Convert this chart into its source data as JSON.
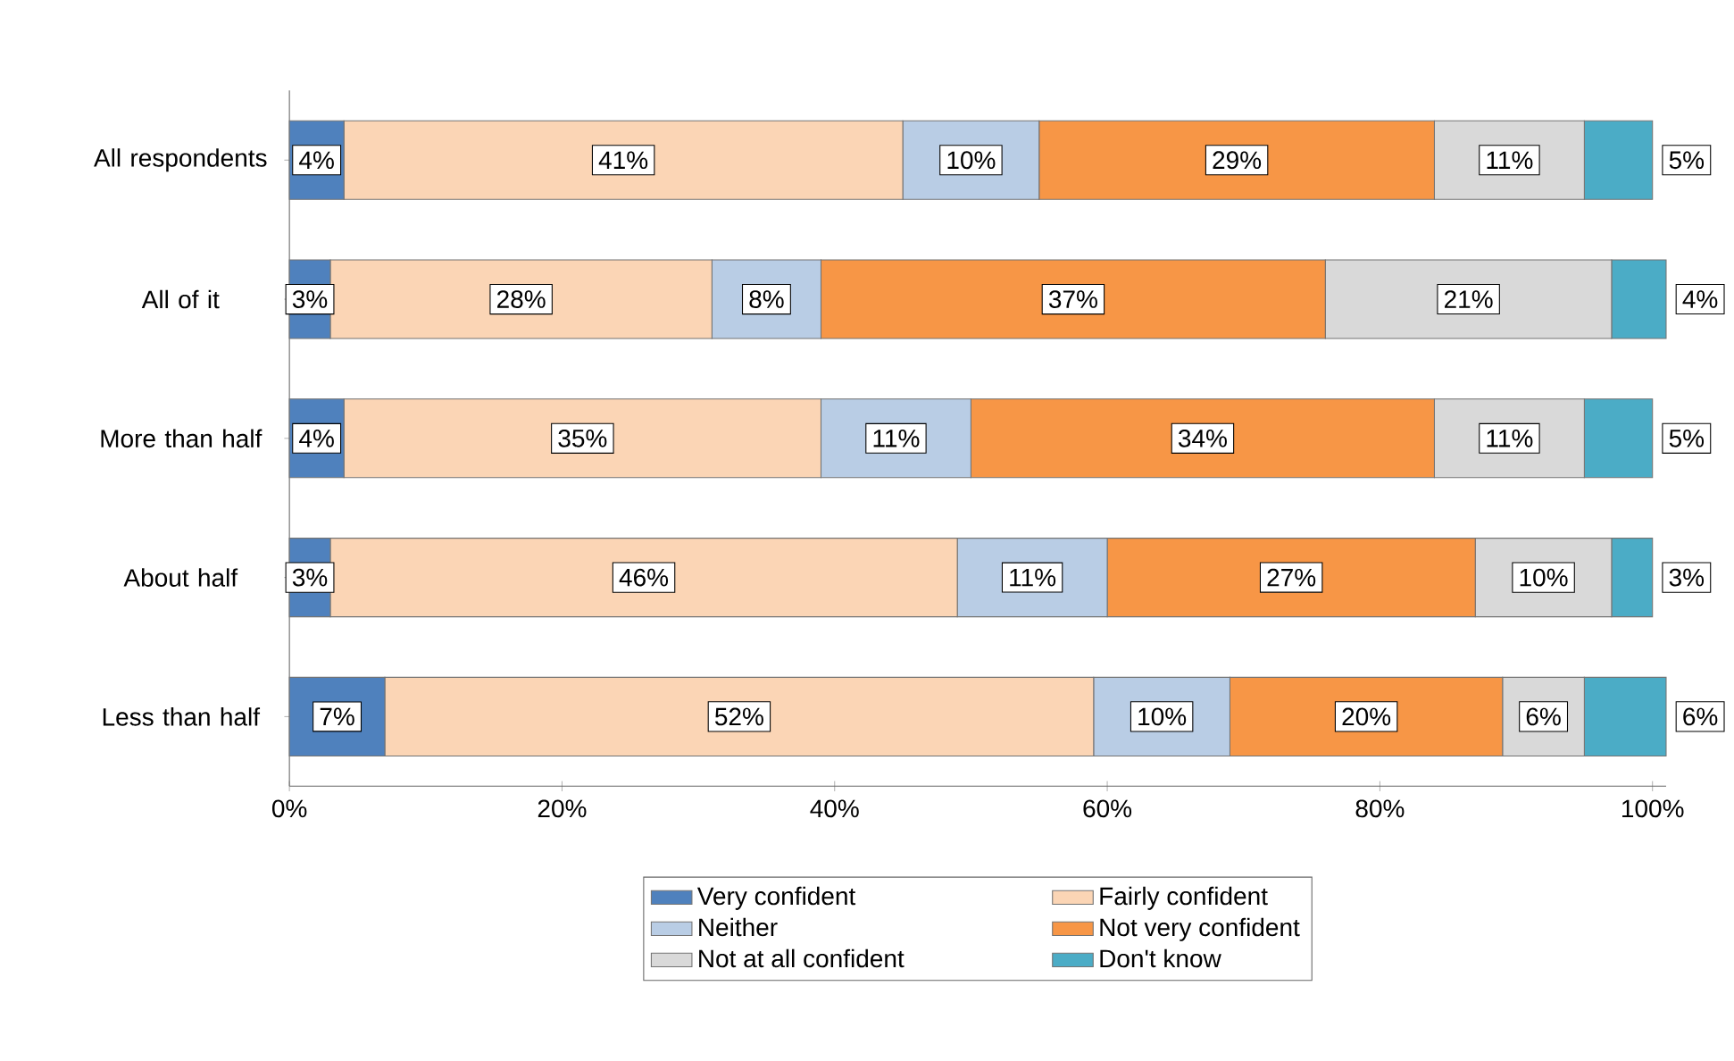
{
  "chart_data": {
    "type": "bar",
    "orientation": "horizontal",
    "stacked": true,
    "categories": [
      "All respondents",
      "All of it",
      "More than half",
      "About half",
      "Less than half"
    ],
    "series": [
      {
        "name": "Very confident",
        "color": "#4f81bd",
        "values": [
          4,
          3,
          4,
          3,
          7
        ],
        "value_labels": [
          "4%",
          "3%",
          "4%",
          "3%",
          "7%"
        ]
      },
      {
        "name": "Fairly confident",
        "color": "#fbd5b5",
        "values": [
          41,
          28,
          35,
          46,
          52
        ],
        "value_labels": [
          "41%",
          "28%",
          "35%",
          "46%",
          "52%"
        ]
      },
      {
        "name": "Neither",
        "color": "#b9cde5",
        "values": [
          10,
          8,
          11,
          11,
          10
        ],
        "value_labels": [
          "10%",
          "8%",
          "11%",
          "11%",
          "10%"
        ]
      },
      {
        "name": "Not very confident",
        "color": "#f79646",
        "values": [
          29,
          37,
          34,
          27,
          20
        ],
        "value_labels": [
          "29%",
          "37%",
          "34%",
          "27%",
          "20%"
        ]
      },
      {
        "name": "Not at all confident",
        "color": "#d9d9d9",
        "values": [
          11,
          21,
          11,
          10,
          6
        ],
        "value_labels": [
          "11%",
          "21%",
          "11%",
          "10%",
          "6%"
        ]
      },
      {
        "name": "Don't know",
        "color": "#4bacc6",
        "values": [
          5,
          4,
          5,
          3,
          6
        ],
        "value_labels": [
          "5%",
          "4%",
          "5%",
          "3%",
          "6%"
        ]
      }
    ],
    "xlim": [
      0,
      101
    ],
    "xticks": [
      {
        "value": 0,
        "label": "0%"
      },
      {
        "value": 20,
        "label": "20%"
      },
      {
        "value": 40,
        "label": "40%"
      },
      {
        "value": 60,
        "label": "60%"
      },
      {
        "value": 80,
        "label": "80%"
      },
      {
        "value": 100,
        "label": "100%"
      }
    ],
    "grid": false,
    "legend": "bottom"
  }
}
